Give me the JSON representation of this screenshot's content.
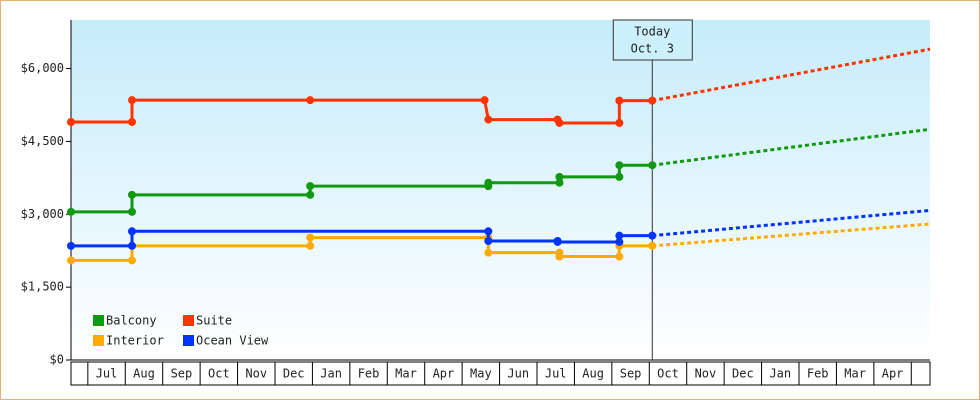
{
  "chart_data": {
    "type": "step-line",
    "annotation": {
      "x": 15.08,
      "lines": [
        "Today",
        "Oct. 3"
      ]
    },
    "xlim": [
      -0.45,
      22.5
    ],
    "xticks": [
      {
        "value": 0.5,
        "label": "Jul"
      },
      {
        "value": 1.5,
        "label": "Aug"
      },
      {
        "value": 2.5,
        "label": "Sep"
      },
      {
        "value": 3.5,
        "label": "Oct"
      },
      {
        "value": 4.5,
        "label": "Nov"
      },
      {
        "value": 5.5,
        "label": "Dec"
      },
      {
        "value": 6.5,
        "label": "Jan"
      },
      {
        "value": 7.5,
        "label": "Feb"
      },
      {
        "value": 8.5,
        "label": "Mar"
      },
      {
        "value": 9.5,
        "label": "Apr"
      },
      {
        "value": 10.5,
        "label": "May"
      },
      {
        "value": 11.5,
        "label": "Jun"
      },
      {
        "value": 12.5,
        "label": "Jul"
      },
      {
        "value": 13.5,
        "label": "Aug"
      },
      {
        "value": 14.5,
        "label": "Sep"
      },
      {
        "value": 15.5,
        "label": "Oct"
      },
      {
        "value": 16.5,
        "label": "Nov"
      },
      {
        "value": 17.5,
        "label": "Dec"
      },
      {
        "value": 18.5,
        "label": "Jan"
      },
      {
        "value": 19.5,
        "label": "Feb"
      },
      {
        "value": 20.5,
        "label": "Mar"
      },
      {
        "value": 21.5,
        "label": "Apr"
      }
    ],
    "ylim": [
      0,
      7000
    ],
    "yticks": [
      {
        "value": 0,
        "label": "$0"
      },
      {
        "value": 1500,
        "label": "$1,500"
      },
      {
        "value": 3000,
        "label": "$3,000"
      },
      {
        "value": 4500,
        "label": "$4,500"
      },
      {
        "value": 6000,
        "label": "$6,000"
      }
    ],
    "legend": "lower-left",
    "series": [
      {
        "name": "Balcony",
        "color": "#119911",
        "x": [
          -0.45,
          1.18,
          1.18,
          5.94,
          5.94,
          10.7,
          10.7,
          12.6,
          12.6,
          14.2,
          14.2,
          15.08
        ],
        "values": [
          3050,
          3050,
          3400,
          3400,
          3580,
          3580,
          3650,
          3650,
          3770,
          3770,
          4010,
          4010
        ],
        "projection": {
          "x": [
            15.08,
            22.5
          ],
          "values": [
            4010,
            4750
          ]
        }
      },
      {
        "name": "Suite",
        "color": "#ff3300",
        "x": [
          -0.45,
          1.18,
          1.18,
          5.94,
          10.6,
          10.7,
          12.55,
          12.6,
          14.2,
          14.2,
          15.08
        ],
        "values": [
          4900,
          4900,
          5350,
          5350,
          5350,
          4950,
          4950,
          4880,
          4880,
          5340,
          5340
        ],
        "projection": {
          "x": [
            15.08,
            22.5
          ],
          "values": [
            5340,
            6400
          ]
        }
      },
      {
        "name": "Interior",
        "color": "#ffaa00",
        "x": [
          -0.45,
          1.18,
          1.18,
          5.94,
          5.94,
          10.7,
          10.7,
          12.6,
          12.6,
          14.2,
          14.2,
          15.08
        ],
        "values": [
          2050,
          2050,
          2350,
          2350,
          2520,
          2520,
          2210,
          2210,
          2130,
          2130,
          2350,
          2350
        ],
        "projection": {
          "x": [
            15.08,
            22.5
          ],
          "values": [
            2350,
            2800
          ]
        }
      },
      {
        "name": "Ocean View",
        "color": "#0033ff",
        "x": [
          -0.45,
          1.18,
          1.18,
          10.7,
          10.7,
          12.55,
          12.55,
          14.2,
          14.2,
          15.08
        ],
        "values": [
          2350,
          2350,
          2650,
          2650,
          2450,
          2450,
          2430,
          2430,
          2560,
          2560
        ],
        "projection": {
          "x": [
            15.08,
            22.5
          ],
          "values": [
            2560,
            3080
          ]
        }
      }
    ]
  }
}
